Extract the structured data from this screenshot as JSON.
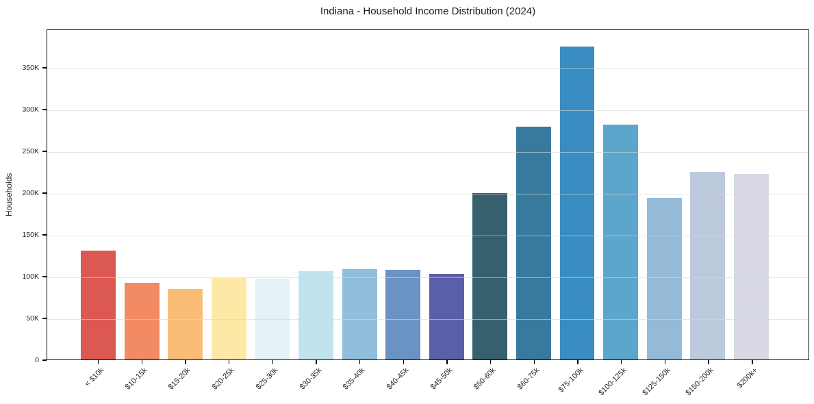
{
  "chart_data": {
    "type": "bar",
    "title": "Indiana - Household Income Distribution (2024)",
    "xlabel": "",
    "ylabel": "Households",
    "categories": [
      "< $10k",
      "$10-15k",
      "$15-20k",
      "$20-25k",
      "$25-30k",
      "$30-35k",
      "$35-40k",
      "$40-45k",
      "$45-50k",
      "$50-60k",
      "$60-75k",
      "$75-100k",
      "$100-125k",
      "$125-150k",
      "$150-200k",
      "$200k+"
    ],
    "values": [
      131000,
      92000,
      85000,
      98000,
      97000,
      106000,
      109000,
      108000,
      103000,
      200000,
      280000,
      376000,
      282000,
      194000,
      226000,
      223000
    ],
    "bar_colors": [
      "#dc5852",
      "#f28a64",
      "#fabd78",
      "#fde8a6",
      "#e4f1f6",
      "#c1e3ed",
      "#90bedb",
      "#6a93c4",
      "#5b5fa9",
      "#37606f",
      "#387a9e",
      "#398dc1",
      "#5ba6ca",
      "#95bad8",
      "#bdcade",
      "#d8d9e5"
    ],
    "ylim": [
      0,
      396000
    ],
    "yticks": [
      {
        "value": 0,
        "label": "0"
      },
      {
        "value": 50000,
        "label": "50K"
      },
      {
        "value": 100000,
        "label": "100K"
      },
      {
        "value": 150000,
        "label": "150K"
      },
      {
        "value": 200000,
        "label": "200K"
      },
      {
        "value": 250000,
        "label": "250K"
      },
      {
        "value": 300000,
        "label": "300K"
      },
      {
        "value": 350000,
        "label": "350K"
      }
    ],
    "grid": "horizontal",
    "legend": "none",
    "styles": {
      "spine_color": "#000000",
      "grid_color": "#e8e8e8",
      "text_color": "#262626",
      "background": "#ffffff"
    }
  }
}
